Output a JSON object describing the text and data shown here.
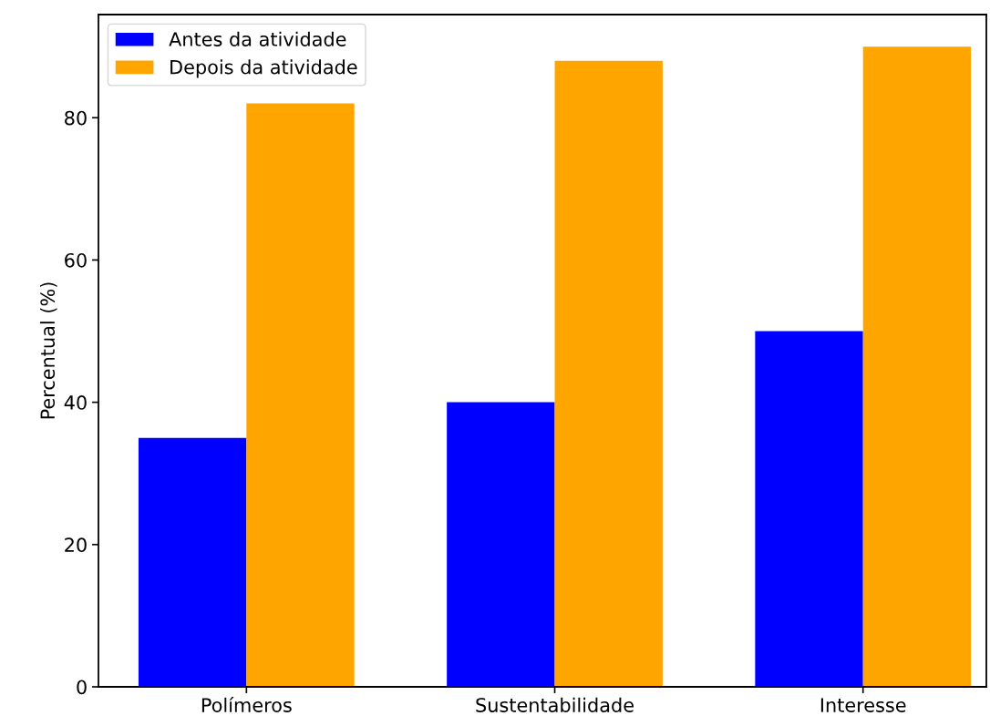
{
  "chart_data": {
    "type": "bar",
    "ylabel": "Percentual (%)",
    "categories": [
      "Polímeros",
      "Sustentabilidade",
      "Interesse"
    ],
    "series": [
      {
        "name": "Antes da atividade",
        "color": "#0000ff",
        "values": [
          35,
          40,
          50
        ]
      },
      {
        "name": "Depois da atividade",
        "color": "#ffa500",
        "values": [
          82,
          88,
          90
        ]
      }
    ],
    "ylim": [
      0,
      94.5
    ],
    "yticks": [
      0,
      20,
      40,
      60,
      80
    ],
    "legend": "top left",
    "grid": false
  }
}
